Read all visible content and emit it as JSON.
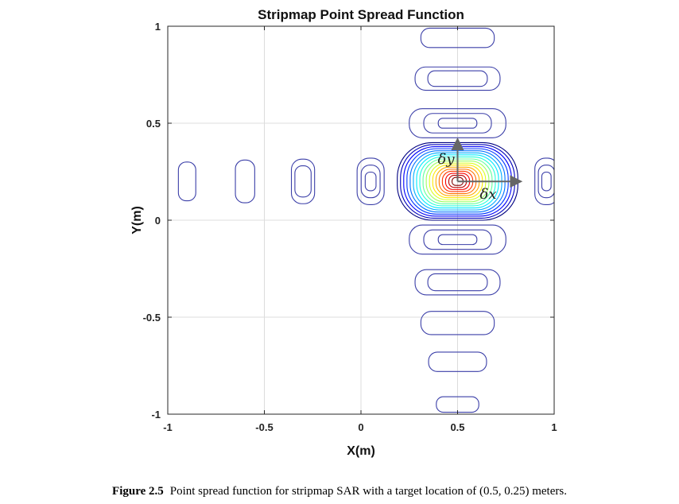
{
  "chart_data": {
    "type": "contour",
    "title": "Stripmap Point Spread Function",
    "xlabel": "X(m)",
    "ylabel": "Y(m)",
    "xlim": [
      -1,
      1
    ],
    "ylim": [
      -1,
      1
    ],
    "xticks": [
      -1,
      -0.5,
      0,
      0.5,
      1
    ],
    "xtick_labels": [
      "-1",
      "-0.5",
      "0",
      "0.5",
      "1"
    ],
    "yticks": [
      -1,
      -0.5,
      0,
      0.5,
      1
    ],
    "ytick_labels": [
      "-1",
      "-0.5",
      "0",
      "0.5",
      "1"
    ],
    "grid": true,
    "target": {
      "x": 0.5,
      "y": 0.25
    },
    "mainlobe_levels": 18,
    "sidelobes_x": [
      {
        "x": -0.9,
        "y": 0.2,
        "rx": 0.045,
        "ry": 0.1,
        "rings": 1
      },
      {
        "x": -0.6,
        "y": 0.2,
        "rx": 0.05,
        "ry": 0.11,
        "rings": 1
      },
      {
        "x": -0.3,
        "y": 0.2,
        "rx": 0.06,
        "ry": 0.115,
        "rings": 2
      },
      {
        "x": 0.05,
        "y": 0.2,
        "rx": 0.07,
        "ry": 0.12,
        "rings": 3
      },
      {
        "x": 0.96,
        "y": 0.2,
        "rx": 0.06,
        "ry": 0.12,
        "rings": 3
      }
    ],
    "sidelobes_y": [
      {
        "x": 0.5,
        "y": 0.94,
        "rx": 0.19,
        "ry": 0.05,
        "rings": 1
      },
      {
        "x": 0.5,
        "y": 0.73,
        "rx": 0.22,
        "ry": 0.06,
        "rings": 2
      },
      {
        "x": 0.5,
        "y": 0.5,
        "rx": 0.25,
        "ry": 0.075,
        "rings": 3
      },
      {
        "x": 0.5,
        "y": -0.1,
        "rx": 0.25,
        "ry": 0.075,
        "rings": 3
      },
      {
        "x": 0.5,
        "y": -0.32,
        "rx": 0.22,
        "ry": 0.065,
        "rings": 2
      },
      {
        "x": 0.5,
        "y": -0.53,
        "rx": 0.19,
        "ry": 0.06,
        "rings": 1
      },
      {
        "x": 0.5,
        "y": -0.73,
        "rx": 0.15,
        "ry": 0.05,
        "rings": 1
      },
      {
        "x": 0.5,
        "y": -0.95,
        "rx": 0.11,
        "ry": 0.04,
        "rings": 1
      }
    ],
    "annotations": [
      {
        "text": "δy"
      },
      {
        "text": "δx"
      }
    ]
  },
  "caption": {
    "figure_label": "Figure 2.5",
    "text": "Point spread function for stripmap SAR with a target location of (0.5, 0.25) meters."
  }
}
